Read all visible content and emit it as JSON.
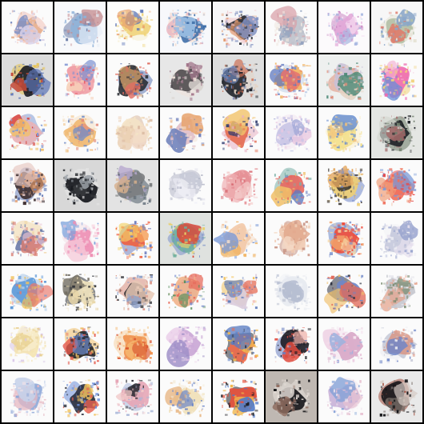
{
  "grid": {
    "rows": 8,
    "cols": 8,
    "tiles": [
      {
        "bg": "#fbfbfb",
        "colors": [
          "#e7b08f",
          "#7c8fc4",
          "#d8d0e8",
          "#f2c3b8"
        ],
        "seed": 11
      },
      {
        "bg": "#f8f9fb",
        "colors": [
          "#8fb2d8",
          "#e9eef7",
          "#c38b8f",
          "#6d7da8"
        ],
        "seed": 12
      },
      {
        "bg": "#fdfdfb",
        "colors": [
          "#f0d47a",
          "#5b74b6",
          "#e8a06b",
          "#f6efcf"
        ],
        "seed": 13
      },
      {
        "bg": "#f7f8fb",
        "colors": [
          "#3f6ea8",
          "#e8b6bf",
          "#9cc0e4",
          "#f4d8c8"
        ],
        "seed": 14
      },
      {
        "bg": "#f6f6f7",
        "colors": [
          "#23262d",
          "#e39b6f",
          "#7f8fbf",
          "#f0c2c7"
        ],
        "seed": 15
      },
      {
        "bg": "#fbfbfb",
        "colors": [
          "#bfc2cc",
          "#d9a1a8",
          "#8fa0bd",
          "#efe7e0"
        ],
        "seed": 16
      },
      {
        "bg": "#fcfafc",
        "colors": [
          "#e2a7d8",
          "#f3d6ee",
          "#a6b5e0",
          "#c988c3"
        ],
        "seed": 17
      },
      {
        "bg": "#f7f7f7",
        "colors": [
          "#b3c0a5",
          "#df7a6a",
          "#8aa6c8",
          "#e7e3d6"
        ],
        "seed": 18
      },
      {
        "bg": "#dcdcdc",
        "colors": [
          "#1a1c22",
          "#c44b3b",
          "#5b74b6",
          "#e6c24f"
        ],
        "seed": 21
      },
      {
        "bg": "#fbfbfb",
        "colors": [
          "#f0a2a8",
          "#7a8fd0",
          "#f6d0b8",
          "#e85a68"
        ],
        "seed": 22
      },
      {
        "bg": "#fbfbfb",
        "colors": [
          "#2b2d33",
          "#d6a06a",
          "#e16f63",
          "#5c77b3"
        ],
        "seed": 23
      },
      {
        "bg": "#e7e7e7",
        "colors": [
          "#4f4a4e",
          "#d8d2ce",
          "#a3778c",
          "#f0e1da"
        ],
        "seed": 24
      },
      {
        "bg": "#dedede",
        "colors": [
          "#20232a",
          "#cc6b4f",
          "#6c84b8",
          "#e2d3c5"
        ],
        "seed": 25
      },
      {
        "bg": "#fbfbfb",
        "colors": [
          "#f2b35f",
          "#5f78bf",
          "#e6736e",
          "#bfcfe7"
        ],
        "seed": 26
      },
      {
        "bg": "#eef0ef",
        "colors": [
          "#c9c1d7",
          "#e6d2c2",
          "#4f8a78",
          "#df8f7a"
        ],
        "seed": 27
      },
      {
        "bg": "#fbfbfb",
        "colors": [
          "#ef6ab0",
          "#f3b0d3",
          "#6c8fd6",
          "#f1d27a"
        ],
        "seed": 28
      },
      {
        "bg": "#fbfbfb",
        "colors": [
          "#e9b2b6",
          "#d6453f",
          "#f0c06d",
          "#7f9ad4"
        ],
        "seed": 31
      },
      {
        "bg": "#fbfbfb",
        "colors": [
          "#f0b870",
          "#e38d7a",
          "#6f8cc8",
          "#f6e0c2"
        ],
        "seed": 32
      },
      {
        "bg": "#fbfbfb",
        "colors": [
          "#f4e3c6",
          "#e9cdb0",
          "#f2d9c6",
          "#d9b89f"
        ],
        "seed": 33
      },
      {
        "bg": "#fbfbfb",
        "colors": [
          "#e1bfc9",
          "#e7a46f",
          "#6d7fb9",
          "#f3e3d8"
        ],
        "seed": 34
      },
      {
        "bg": "#fbfbfb",
        "colors": [
          "#e36a4f",
          "#2e3b6f",
          "#f2c36b",
          "#e8b0c2"
        ],
        "seed": 35
      },
      {
        "bg": "#fbfbfb",
        "colors": [
          "#c9c4e6",
          "#e9c7e0",
          "#9fa6d6",
          "#f3e6f0"
        ],
        "seed": 36
      },
      {
        "bg": "#fbfbfb",
        "colors": [
          "#f3e08c",
          "#6a8fd0",
          "#f0c07a",
          "#fbeec8"
        ],
        "seed": 37
      },
      {
        "bg": "#e4e6e3",
        "colors": [
          "#1e2126",
          "#d4d7d0",
          "#a36a6a",
          "#6e7c6a"
        ],
        "seed": 38
      },
      {
        "bg": "#fbfbfb",
        "colors": [
          "#3b2c2e",
          "#e29b6a",
          "#e7c9c2",
          "#6a7fb8"
        ],
        "seed": 41
      },
      {
        "bg": "#d8d8d8",
        "colors": [
          "#111318",
          "#3a3c40",
          "#9aa0a6",
          "#e7e7e7"
        ],
        "seed": 42
      },
      {
        "bg": "#e3e3e3",
        "colors": [
          "#7b7d7f",
          "#b7a9cf",
          "#d7b08d",
          "#4f5d6a"
        ],
        "seed": 43
      },
      {
        "bg": "#fbfbfb",
        "colors": [
          "#e6e6ee",
          "#c7c9d6",
          "#f0f0f6",
          "#b2b5c6"
        ],
        "seed": 44
      },
      {
        "bg": "#fbfbfb",
        "colors": [
          "#e68f95",
          "#f0b3b5",
          "#f5d0cf",
          "#d86b73"
        ],
        "seed": 45
      },
      {
        "bg": "#fbfbfb",
        "colors": [
          "#e7675f",
          "#5f78bf",
          "#f1c069",
          "#7ab0a7"
        ],
        "seed": 46
      },
      {
        "bg": "#fbfbfb",
        "colors": [
          "#f0cf72",
          "#3a3530",
          "#e3a861",
          "#6f86c8"
        ],
        "seed": 47
      },
      {
        "bg": "#fbfbfb",
        "colors": [
          "#ef6e5a",
          "#f0a07a",
          "#7a9ad8",
          "#e64b4b"
        ],
        "seed": 48
      },
      {
        "bg": "#fbfbfb",
        "colors": [
          "#6a7aa8",
          "#e8c0d0",
          "#d87b6f",
          "#f0d7a8"
        ],
        "seed": 51
      },
      {
        "bg": "#fbfbfb",
        "colors": [
          "#ee8fb4",
          "#f6cbd9",
          "#7aa0dc",
          "#f3e0e8"
        ],
        "seed": 52
      },
      {
        "bg": "#fbfbfb",
        "colors": [
          "#ef5f3f",
          "#f4a05a",
          "#f2d26a",
          "#6f7fbf"
        ],
        "seed": 53
      },
      {
        "bg": "#dfe2df",
        "colors": [
          "#6fb0a0",
          "#e8d06a",
          "#d74b3b",
          "#7a90c8"
        ],
        "seed": 54
      },
      {
        "bg": "#fbfbfb",
        "colors": [
          "#f2c9a8",
          "#f0b15a",
          "#7a9ad8",
          "#f5e0cc"
        ],
        "seed": 55
      },
      {
        "bg": "#fbfbfb",
        "colors": [
          "#f0c9b0",
          "#e2a78d",
          "#f5ddc9",
          "#c58f7f"
        ],
        "seed": 56
      },
      {
        "bg": "#fbfbfb",
        "colors": [
          "#ee4c3b",
          "#f0a06a",
          "#f6d8a8",
          "#6b86c8"
        ],
        "seed": 57
      },
      {
        "bg": "#fbfbfb",
        "colors": [
          "#c5c9db",
          "#e6e0ee",
          "#9aa5cf",
          "#f2f2f6"
        ],
        "seed": 58
      },
      {
        "bg": "#fbfbfb",
        "colors": [
          "#5f9ad8",
          "#f0c05a",
          "#e9766b",
          "#a9c7e8"
        ],
        "seed": 61
      },
      {
        "bg": "#fbfbfb",
        "colors": [
          "#f1e4bf",
          "#6f6a5f",
          "#e8d6a8",
          "#2e3137"
        ],
        "seed": 62
      },
      {
        "bg": "#fbfbfb",
        "colors": [
          "#2b2b30",
          "#e6c8b5",
          "#8fa1c8",
          "#d78c7c"
        ],
        "seed": 63
      },
      {
        "bg": "#fbfbfb",
        "colors": [
          "#f1b28a",
          "#5a8f5f",
          "#e66a5a",
          "#7a8fd0"
        ],
        "seed": 64
      },
      {
        "bg": "#fbfbfb",
        "colors": [
          "#d9cbdc",
          "#e6705a",
          "#5c7ab8",
          "#f2c35f"
        ],
        "seed": 65
      },
      {
        "bg": "#fbfbfb",
        "colors": [
          "#e7eaf0",
          "#c9ceda",
          "#b3bbd0",
          "#f0f2f6"
        ],
        "seed": 66
      },
      {
        "bg": "#fbfbfb",
        "colors": [
          "#6e86c7",
          "#f0c06a",
          "#e26a5a",
          "#2d3240"
        ],
        "seed": 67
      },
      {
        "bg": "#fbfbfb",
        "colors": [
          "#c6c8cf",
          "#7a8a6f",
          "#e5a28a",
          "#e8e8ee"
        ],
        "seed": 68
      },
      {
        "bg": "#fbfbfb",
        "colors": [
          "#f4e3b0",
          "#f8efcf",
          "#e8cf90",
          "#d9c7e8"
        ],
        "seed": 71
      },
      {
        "bg": "#fbfbfb",
        "colors": [
          "#1e1f24",
          "#e4584b",
          "#6c88c9",
          "#f0c06a"
        ],
        "seed": 72
      },
      {
        "bg": "#fbfbfb",
        "colors": [
          "#ef8f4a",
          "#f4b56f",
          "#d8542f",
          "#f7d4a8"
        ],
        "seed": 73
      },
      {
        "bg": "#fbfbfb",
        "colors": [
          "#caa6d6",
          "#e7c6e6",
          "#9f8fc7",
          "#f2e1f0"
        ],
        "seed": 74
      },
      {
        "bg": "#fbfbfb",
        "colors": [
          "#ef6c4b",
          "#f0b84f",
          "#5b7dc2",
          "#2c2c33"
        ],
        "seed": 75
      },
      {
        "bg": "#fbfbfb",
        "colors": [
          "#1d1b22",
          "#e04a3e",
          "#f0b0a8",
          "#6a7fc0"
        ],
        "seed": 76
      },
      {
        "bg": "#fbfbfb",
        "colors": [
          "#d7a6c6",
          "#eac6dd",
          "#9fb2de",
          "#f4e3ee"
        ],
        "seed": 77
      },
      {
        "bg": "#fbfbfb",
        "colors": [
          "#c8cbd8",
          "#d98f7c",
          "#6f86c8",
          "#ededf2"
        ],
        "seed": 78
      },
      {
        "bg": "#fbfbfb",
        "colors": [
          "#8fa8d8",
          "#e6b8c2",
          "#c7d2ea",
          "#f2e2e6"
        ],
        "seed": 81
      },
      {
        "bg": "#fbfbfb",
        "colors": [
          "#2a2e3c",
          "#e65f4e",
          "#f2c35f",
          "#6b8ed8"
        ],
        "seed": 82
      },
      {
        "bg": "#fbfbfb",
        "colors": [
          "#e6a6b6",
          "#2e2f36",
          "#f1c8c8",
          "#a8b6d8"
        ],
        "seed": 83
      },
      {
        "bg": "#fbfbfb",
        "colors": [
          "#f0e0b8",
          "#e6b07a",
          "#6b86c8",
          "#f6efe0"
        ],
        "seed": 84
      },
      {
        "bg": "#fbfbfb",
        "colors": [
          "#e8503a",
          "#f0b84f",
          "#4f78c9",
          "#1f2028"
        ],
        "seed": 85
      },
      {
        "bg": "#bfb8b2",
        "colors": [
          "#151518",
          "#d7d2cc",
          "#8f6c5f",
          "#e8e0da"
        ],
        "seed": 86
      },
      {
        "bg": "#fbfbfb",
        "colors": [
          "#c9b2d8",
          "#e7c2d2",
          "#7fa0d6",
          "#f2e6ef"
        ],
        "seed": 87
      },
      {
        "bg": "#e9e9e9",
        "colors": [
          "#141417",
          "#7a6f6a",
          "#d5cbc4",
          "#a04c3c"
        ],
        "seed": 88
      }
    ]
  }
}
